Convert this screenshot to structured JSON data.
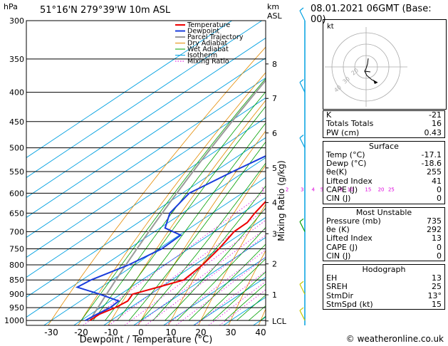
{
  "header": {
    "location": "51°16'N  279°39'W  10m  ASL",
    "hpa_label": "hPa",
    "km_label": "km",
    "asl_label": "ASL",
    "datetime": "08.01.2021  06GMT  (Base: 00)"
  },
  "chart_data": {
    "type": "line",
    "subtype": "skew-t log-p",
    "xlabel": "Dewpoint / Temperature (°C)",
    "ylabel_right": "Mixing Ratio (g/kg)",
    "xlim": [
      -40,
      40
    ],
    "pressure_range": [
      300,
      1020
    ],
    "x_ticks": [
      -30,
      -20,
      -10,
      0,
      10,
      20,
      30,
      40
    ],
    "pressure_ticks": [
      300,
      350,
      400,
      450,
      500,
      550,
      600,
      650,
      700,
      750,
      800,
      850,
      900,
      950,
      1000
    ],
    "km_ticks": [
      {
        "label": "8",
        "p": 357
      },
      {
        "label": "7",
        "p": 410
      },
      {
        "label": "6",
        "p": 471
      },
      {
        "label": "5",
        "p": 542
      },
      {
        "label": "4",
        "p": 623
      },
      {
        "label": "3",
        "p": 706
      },
      {
        "label": "2",
        "p": 797
      },
      {
        "label": "1",
        "p": 902
      },
      {
        "label": "LCL",
        "p": 1002
      }
    ],
    "mixing_ratio_labels": [
      "1",
      "2",
      "3",
      "4",
      "5",
      "8",
      "10",
      "15",
      "20",
      "25"
    ],
    "mixing_ratio_values": [
      1,
      2,
      3,
      4,
      5,
      8,
      10,
      15,
      20,
      25
    ],
    "legend": [
      "Temperature",
      "Dewpoint",
      "Parcel Trajectory",
      "Dry Adiabat",
      "Wet Adiabat",
      "Isotherm",
      "Mixing Ratio"
    ],
    "legend_position": "top-right",
    "colors": {
      "temperature": "#ee0000",
      "dewpoint": "#1a3cdc",
      "parcel": "#9a9a9a",
      "dry_adiabat": "#e38a00",
      "wet_adiabat": "#00a000",
      "isotherm": "#00a0e0",
      "mixing_ratio": "#dd00dd",
      "wind": "#c8c800"
    },
    "series": [
      {
        "name": "Temperature",
        "points": [
          [
            1000,
            -17.1
          ],
          [
            975,
            -17
          ],
          [
            950,
            -15
          ],
          [
            925,
            -14.2
          ],
          [
            900,
            -16
          ],
          [
            875,
            -11
          ],
          [
            850,
            -6
          ],
          [
            800,
            -7.3
          ],
          [
            750,
            -9.9
          ],
          [
            700,
            -13.4
          ],
          [
            675,
            -13.6
          ],
          [
            650,
            -15.8
          ],
          [
            600,
            -19.5
          ],
          [
            550,
            -23.8
          ],
          [
            500,
            -28.3
          ],
          [
            450,
            -34
          ],
          [
            400,
            -41.3
          ],
          [
            350,
            -48
          ],
          [
            300,
            -54.6
          ]
        ]
      },
      {
        "name": "Dewpoint",
        "points": [
          [
            1000,
            -18.6
          ],
          [
            975,
            -17.8
          ],
          [
            950,
            -16.7
          ],
          [
            925,
            -17.2
          ],
          [
            900,
            -27
          ],
          [
            875,
            -38
          ],
          [
            850,
            -37
          ],
          [
            800,
            -32
          ],
          [
            750,
            -29
          ],
          [
            710,
            -29.5
          ],
          [
            690,
            -38.3
          ],
          [
            650,
            -44.2
          ],
          [
            600,
            -47.7
          ],
          [
            550,
            -44
          ],
          [
            500,
            -39.2
          ],
          [
            450,
            -45.8
          ],
          [
            400,
            -52.5
          ],
          [
            350,
            -59
          ],
          [
            300,
            -64.7
          ]
        ]
      }
    ]
  },
  "hodograph": {
    "label": "kt",
    "ring_labels": [
      "40",
      "30",
      "20"
    ]
  },
  "indices": {
    "rows": [
      {
        "label": "K",
        "value": "-21"
      },
      {
        "label": "Totals Totals",
        "value": "16"
      },
      {
        "label": "PW (cm)",
        "value": "0.43"
      }
    ]
  },
  "surface": {
    "title": "Surface",
    "rows": [
      {
        "label": "Temp (°C)",
        "value": "-17.1"
      },
      {
        "label": "Dewp (°C)",
        "value": "-18.6"
      },
      {
        "label": "θe(K)",
        "value": "255"
      },
      {
        "label": "Lifted Index",
        "value": "41"
      },
      {
        "label": "CAPE (J)",
        "value": "0"
      },
      {
        "label": "CIN (J)",
        "value": "0"
      }
    ]
  },
  "most_unstable": {
    "title": "Most Unstable",
    "rows": [
      {
        "label": "Pressure (mb)",
        "value": "735"
      },
      {
        "label": "θe (K)",
        "value": "292"
      },
      {
        "label": "Lifted Index",
        "value": "13"
      },
      {
        "label": "CAPE (J)",
        "value": "0"
      },
      {
        "label": "CIN (J)",
        "value": "0"
      }
    ]
  },
  "hodograph_table": {
    "title": "Hodograph",
    "rows": [
      {
        "label": "EH",
        "value": "13"
      },
      {
        "label": "SREH",
        "value": "25"
      },
      {
        "label": "StmDir",
        "value": "13°"
      },
      {
        "label": "StmSpd (kt)",
        "value": "15"
      }
    ]
  },
  "footer": {
    "copyright": "© weatheronline.co.uk"
  }
}
